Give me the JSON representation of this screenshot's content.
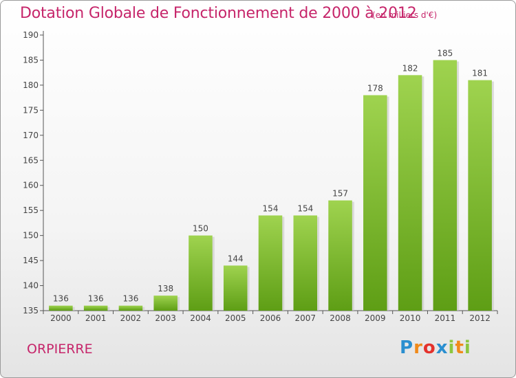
{
  "title": "Dotation Globale de Fonctionnement de 2000 à 2012",
  "subtitle": "(en milliers d'€)",
  "commune": "ORPIERRE",
  "logo": {
    "letters": [
      {
        "ch": "P",
        "color": "#2a8fd0"
      },
      {
        "ch": "r",
        "color": "#f08a1a"
      },
      {
        "ch": "o",
        "color": "#e4322c"
      },
      {
        "ch": "x",
        "color": "#2a8fd0"
      },
      {
        "ch": "i",
        "color": "#8cc63f"
      },
      {
        "ch": "t",
        "color": "#f08a1a"
      },
      {
        "ch": "i",
        "color": "#8cc63f"
      }
    ]
  },
  "chart_data": {
    "type": "bar",
    "categories": [
      "2000",
      "2001",
      "2002",
      "2003",
      "2004",
      "2005",
      "2006",
      "2007",
      "2008",
      "2009",
      "2010",
      "2011",
      "2012"
    ],
    "values": [
      136,
      136,
      136,
      138,
      150,
      144,
      154,
      154,
      157,
      178,
      182,
      185,
      181
    ],
    "ylim": [
      135,
      190
    ],
    "yticks": [
      135,
      140,
      145,
      150,
      155,
      160,
      165,
      170,
      175,
      180,
      185,
      190
    ],
    "grid": false,
    "bar_color_top": "#9fd34f",
    "bar_color_bottom": "#5e9e15",
    "title_color": "#c6256a"
  }
}
